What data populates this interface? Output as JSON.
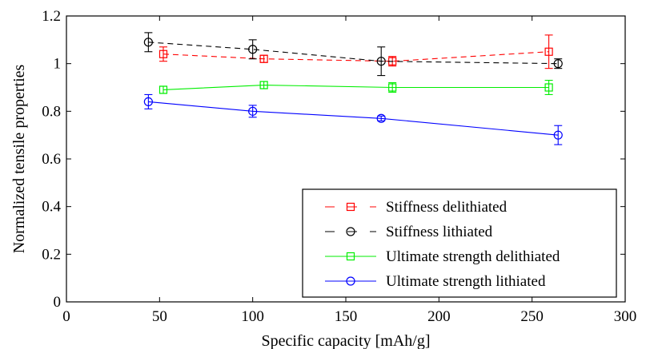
{
  "chart_data": {
    "type": "line",
    "title": "",
    "xlabel": "Specific capacity [mAh/g]",
    "ylabel": "Normalized tensile properties",
    "xlim": [
      0,
      300
    ],
    "ylim": [
      0,
      1.2
    ],
    "x_ticks": [
      "0",
      "50",
      "100",
      "150",
      "200",
      "250",
      "300"
    ],
    "y_ticks": [
      "0",
      "0.2",
      "0.4",
      "0.6",
      "0.8",
      "1",
      "1.2"
    ],
    "grid": false,
    "legend_position": "lower-right",
    "series": [
      {
        "name": "Stiffness delithiated",
        "color": "#ff0000",
        "line_style": "dashed",
        "marker": "square",
        "x": [
          52,
          106,
          175,
          259
        ],
        "y": [
          1.04,
          1.02,
          1.01,
          1.05
        ],
        "error": [
          0.03,
          0.015,
          0.02,
          0.07
        ]
      },
      {
        "name": "Stiffness lithiated",
        "color": "#000000",
        "line_style": "dashed",
        "marker": "circle",
        "x": [
          44,
          100,
          169,
          264
        ],
        "y": [
          1.09,
          1.06,
          1.01,
          1.0
        ],
        "error": [
          0.04,
          0.04,
          0.06,
          0.02
        ]
      },
      {
        "name": "Ultimate strength delithiated",
        "color": "#00ee00",
        "line_style": "solid",
        "marker": "square",
        "x": [
          52,
          106,
          175,
          259
        ],
        "y": [
          0.89,
          0.91,
          0.9,
          0.9
        ],
        "error": [
          0.015,
          0.015,
          0.02,
          0.03
        ]
      },
      {
        "name": "Ultimate strength lithiated",
        "color": "#0000ff",
        "line_style": "solid",
        "marker": "circle",
        "x": [
          44,
          100,
          169,
          264
        ],
        "y": [
          0.84,
          0.8,
          0.77,
          0.7
        ],
        "error": [
          0.03,
          0.025,
          0.01,
          0.04
        ]
      }
    ]
  }
}
